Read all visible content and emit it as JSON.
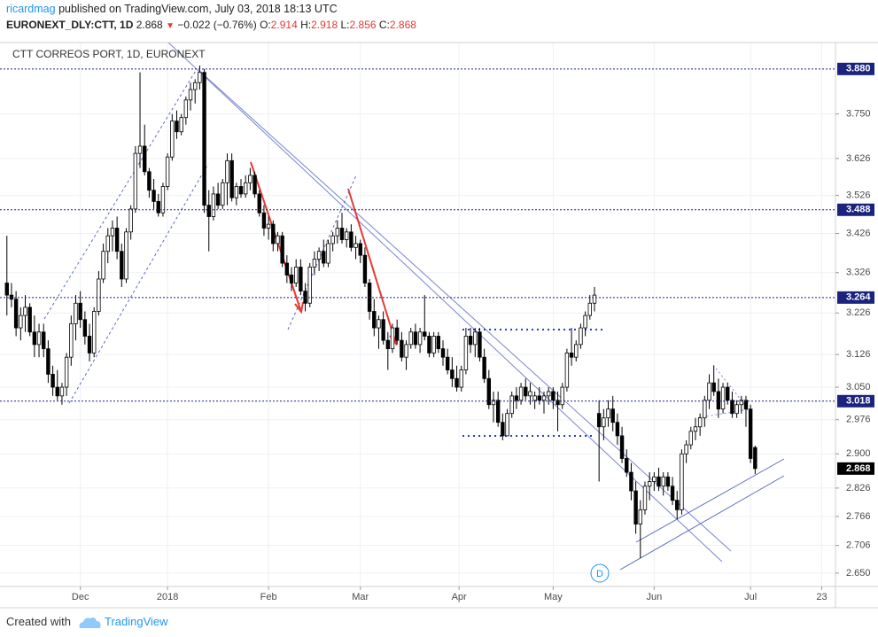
{
  "header": {
    "author": "ricardmag",
    "published": "published on TradingView.com, July 03, 2018 18:13 UTC",
    "symbol": "EURONEXT_DLY:CTT, 1D",
    "change": "−0.022 (−0.76%)",
    "open_label": "O:",
    "high_label": "H:",
    "low_label": "L:",
    "close_label": "C:"
  },
  "chart_data": {
    "type": "candlestick",
    "title": "CTT CORREOS PORT, 1D, EURONEXT",
    "candles": [
      [
        3.3,
        3.42,
        3.22,
        3.27
      ],
      [
        3.27,
        3.3,
        3.24,
        3.26
      ],
      [
        3.26,
        3.28,
        3.17,
        3.19
      ],
      [
        3.19,
        3.24,
        3.16,
        3.22
      ],
      [
        3.22,
        3.27,
        3.18,
        3.24
      ],
      [
        3.24,
        3.25,
        3.17,
        3.18
      ],
      [
        3.18,
        3.22,
        3.12,
        3.15
      ],
      [
        3.15,
        3.2,
        3.12,
        3.18
      ],
      [
        3.18,
        3.2,
        3.12,
        3.14
      ],
      [
        3.14,
        3.16,
        3.06,
        3.08
      ],
      [
        3.08,
        3.1,
        3.03,
        3.05
      ],
      [
        3.05,
        3.09,
        3.02,
        3.03
      ],
      [
        3.03,
        3.06,
        3.01,
        3.05
      ],
      [
        3.05,
        3.13,
        3.03,
        3.12
      ],
      [
        3.12,
        3.22,
        3.1,
        3.2
      ],
      [
        3.2,
        3.27,
        3.16,
        3.25
      ],
      [
        3.25,
        3.28,
        3.19,
        3.21
      ],
      [
        3.21,
        3.23,
        3.15,
        3.17
      ],
      [
        3.17,
        3.2,
        3.11,
        3.13
      ],
      [
        3.13,
        3.24,
        3.12,
        3.23
      ],
      [
        3.23,
        3.33,
        3.22,
        3.31
      ],
      [
        3.31,
        3.4,
        3.3,
        3.38
      ],
      [
        3.38,
        3.44,
        3.35,
        3.42
      ],
      [
        3.42,
        3.46,
        3.38,
        3.44
      ],
      [
        3.44,
        3.47,
        3.36,
        3.38
      ],
      [
        3.38,
        3.4,
        3.29,
        3.31
      ],
      [
        3.31,
        3.44,
        3.3,
        3.43
      ],
      [
        3.43,
        3.5,
        3.41,
        3.49
      ],
      [
        3.49,
        3.66,
        3.48,
        3.64
      ],
      [
        3.64,
        3.87,
        3.6,
        3.66
      ],
      [
        3.66,
        3.72,
        3.58,
        3.59
      ],
      [
        3.59,
        3.6,
        3.52,
        3.54
      ],
      [
        3.54,
        3.57,
        3.49,
        3.51
      ],
      [
        3.51,
        3.53,
        3.47,
        3.48
      ],
      [
        3.48,
        3.56,
        3.47,
        3.55
      ],
      [
        3.55,
        3.64,
        3.54,
        3.63
      ],
      [
        3.63,
        3.75,
        3.62,
        3.73
      ],
      [
        3.73,
        3.76,
        3.68,
        3.7
      ],
      [
        3.7,
        3.75,
        3.69,
        3.74
      ],
      [
        3.74,
        3.8,
        3.72,
        3.79
      ],
      [
        3.79,
        3.84,
        3.76,
        3.82
      ],
      [
        3.82,
        3.85,
        3.78,
        3.84
      ],
      [
        3.84,
        3.89,
        3.82,
        3.87
      ],
      [
        3.87,
        3.88,
        3.48,
        3.5
      ],
      [
        3.5,
        3.54,
        3.38,
        3.47
      ],
      [
        3.47,
        3.55,
        3.46,
        3.53
      ],
      [
        3.53,
        3.56,
        3.49,
        3.5
      ],
      [
        3.5,
        3.57,
        3.49,
        3.56
      ],
      [
        3.56,
        3.64,
        3.5,
        3.62
      ],
      [
        3.62,
        3.64,
        3.51,
        3.52
      ],
      [
        3.52,
        3.56,
        3.5,
        3.55
      ],
      [
        3.55,
        3.57,
        3.52,
        3.53
      ],
      [
        3.53,
        3.58,
        3.52,
        3.56
      ],
      [
        3.56,
        3.6,
        3.54,
        3.58
      ],
      [
        3.58,
        3.59,
        3.52,
        3.53
      ],
      [
        3.53,
        3.54,
        3.47,
        3.48
      ],
      [
        3.48,
        3.5,
        3.42,
        3.44
      ],
      [
        3.44,
        3.47,
        3.41,
        3.45
      ],
      [
        3.45,
        3.46,
        3.38,
        3.4
      ],
      [
        3.4,
        3.43,
        3.38,
        3.42
      ],
      [
        3.42,
        3.43,
        3.34,
        3.35
      ],
      [
        3.35,
        3.37,
        3.3,
        3.32
      ],
      [
        3.32,
        3.34,
        3.28,
        3.3
      ],
      [
        3.3,
        3.36,
        3.29,
        3.34
      ],
      [
        3.34,
        3.36,
        3.27,
        3.28
      ],
      [
        3.28,
        3.3,
        3.23,
        3.25
      ],
      [
        3.25,
        3.35,
        3.24,
        3.34
      ],
      [
        3.34,
        3.38,
        3.32,
        3.36
      ],
      [
        3.36,
        3.39,
        3.33,
        3.38
      ],
      [
        3.38,
        3.41,
        3.34,
        3.35
      ],
      [
        3.35,
        3.41,
        3.34,
        3.4
      ],
      [
        3.4,
        3.43,
        3.38,
        3.42
      ],
      [
        3.42,
        3.46,
        3.4,
        3.44
      ],
      [
        3.44,
        3.48,
        3.4,
        3.41
      ],
      [
        3.41,
        3.44,
        3.39,
        3.43
      ],
      [
        3.43,
        3.45,
        3.38,
        3.39
      ],
      [
        3.39,
        3.42,
        3.36,
        3.4
      ],
      [
        3.4,
        3.41,
        3.35,
        3.37
      ],
      [
        3.37,
        3.39,
        3.29,
        3.3
      ],
      [
        3.3,
        3.31,
        3.21,
        3.23
      ],
      [
        3.23,
        3.26,
        3.17,
        3.19
      ],
      [
        3.19,
        3.22,
        3.14,
        3.21
      ],
      [
        3.21,
        3.23,
        3.15,
        3.16
      ],
      [
        3.16,
        3.18,
        3.09,
        3.14
      ],
      [
        3.14,
        3.2,
        3.13,
        3.19
      ],
      [
        3.19,
        3.21,
        3.15,
        3.16
      ],
      [
        3.16,
        3.18,
        3.11,
        3.12
      ],
      [
        3.12,
        3.16,
        3.09,
        3.15
      ],
      [
        3.15,
        3.19,
        3.14,
        3.18
      ],
      [
        3.18,
        3.2,
        3.14,
        3.15
      ],
      [
        3.15,
        3.19,
        3.13,
        3.18
      ],
      [
        3.18,
        3.27,
        3.16,
        3.17
      ],
      [
        3.17,
        3.18,
        3.12,
        3.13
      ],
      [
        3.13,
        3.18,
        3.12,
        3.17
      ],
      [
        3.17,
        3.18,
        3.13,
        3.14
      ],
      [
        3.14,
        3.16,
        3.1,
        3.12
      ],
      [
        3.12,
        3.14,
        3.08,
        3.09
      ],
      [
        3.09,
        3.12,
        3.05,
        3.07
      ],
      [
        3.07,
        3.1,
        3.04,
        3.05
      ],
      [
        3.05,
        3.1,
        3.04,
        3.09
      ],
      [
        3.09,
        3.19,
        3.08,
        3.17
      ],
      [
        3.17,
        3.19,
        3.13,
        3.15
      ],
      [
        3.15,
        3.19,
        3.12,
        3.18
      ],
      [
        3.18,
        3.19,
        3.11,
        3.12
      ],
      [
        3.12,
        3.14,
        3.06,
        3.07
      ],
      [
        3.07,
        3.09,
        3.0,
        3.01
      ],
      [
        3.01,
        3.04,
        2.97,
        3.02
      ],
      [
        3.02,
        3.04,
        2.96,
        2.97
      ],
      [
        2.97,
        2.99,
        2.93,
        2.94
      ],
      [
        2.94,
        3.0,
        2.94,
        2.99
      ],
      [
        2.99,
        3.04,
        2.98,
        3.03
      ],
      [
        3.03,
        3.05,
        3.0,
        3.02
      ],
      [
        3.02,
        3.06,
        3.01,
        3.05
      ],
      [
        3.05,
        3.07,
        3.02,
        3.03
      ],
      [
        3.03,
        3.06,
        3.01,
        3.04
      ],
      [
        3.02,
        3.04,
        3.0,
        3.03
      ],
      [
        3.03,
        3.05,
        3.01,
        3.02
      ],
      [
        3.02,
        3.04,
        2.99,
        3.03
      ],
      [
        3.03,
        3.05,
        3.01,
        3.04
      ],
      [
        3.04,
        3.05,
        3.0,
        3.02
      ],
      [
        3.02,
        3.04,
        2.95,
        3.01
      ],
      [
        3.01,
        3.06,
        3.0,
        3.05
      ],
      [
        3.05,
        3.14,
        3.04,
        3.13
      ],
      [
        3.13,
        3.19,
        3.1,
        3.12
      ],
      [
        3.12,
        3.16,
        3.11,
        3.15
      ],
      [
        3.15,
        3.2,
        3.14,
        3.19
      ],
      [
        3.19,
        3.23,
        3.17,
        3.22
      ],
      [
        3.22,
        3.27,
        3.21,
        3.25
      ],
      [
        3.25,
        3.29,
        3.23,
        3.27
      ],
      [
        2.99,
        3.02,
        2.84,
        2.96
      ],
      [
        2.96,
        3.0,
        2.93,
        2.98
      ],
      [
        2.98,
        3.02,
        2.96,
        3.0
      ],
      [
        3.0,
        3.03,
        2.95,
        2.97
      ],
      [
        2.97,
        2.99,
        2.92,
        2.94
      ],
      [
        2.94,
        2.96,
        2.88,
        2.89
      ],
      [
        2.89,
        2.91,
        2.85,
        2.86
      ],
      [
        2.86,
        2.88,
        2.8,
        2.82
      ],
      [
        2.82,
        2.84,
        2.73,
        2.75
      ],
      [
        2.75,
        2.8,
        2.68,
        2.78
      ],
      [
        2.78,
        2.84,
        2.77,
        2.83
      ],
      [
        2.83,
        2.86,
        2.8,
        2.84
      ],
      [
        2.84,
        2.86,
        2.82,
        2.85
      ],
      [
        2.85,
        2.87,
        2.82,
        2.83
      ],
      [
        2.83,
        2.86,
        2.81,
        2.85
      ],
      [
        2.85,
        2.86,
        2.82,
        2.83
      ],
      [
        2.83,
        2.85,
        2.79,
        2.8
      ],
      [
        2.8,
        2.82,
        2.76,
        2.78
      ],
      [
        2.78,
        2.91,
        2.77,
        2.9
      ],
      [
        2.9,
        2.93,
        2.88,
        2.92
      ],
      [
        2.92,
        2.96,
        2.91,
        2.95
      ],
      [
        2.95,
        2.98,
        2.93,
        2.96
      ],
      [
        2.96,
        2.99,
        2.94,
        2.98
      ],
      [
        2.98,
        3.03,
        2.96,
        3.02
      ],
      [
        3.02,
        3.08,
        3.0,
        3.06
      ],
      [
        3.06,
        3.1,
        3.03,
        3.04
      ],
      [
        3.04,
        3.07,
        2.98,
        3.0
      ],
      [
        3.0,
        3.06,
        2.99,
        3.05
      ],
      [
        3.05,
        3.06,
        3.01,
        3.02
      ],
      [
        3.02,
        3.04,
        2.98,
        2.99
      ],
      [
        2.99,
        3.02,
        2.98,
        3.01
      ],
      [
        3.01,
        3.03,
        2.99,
        3.02
      ],
      [
        3.02,
        3.03,
        2.96,
        3.0
      ],
      [
        3.0,
        3.01,
        2.88,
        2.89
      ],
      [
        2.914,
        2.918,
        2.856,
        2.868
      ]
    ],
    "xlim": [
      -1.5,
      180.5
    ],
    "xticks": [
      {
        "value": 16,
        "label": "Dec"
      },
      {
        "value": 35,
        "label": "2018"
      },
      {
        "value": 57,
        "label": "Feb"
      },
      {
        "value": 77,
        "label": "Mar"
      },
      {
        "value": 98.5,
        "label": "Apr"
      },
      {
        "value": 119,
        "label": "May"
      },
      {
        "value": 141,
        "label": "Jun"
      },
      {
        "value": 162,
        "label": "Jul"
      },
      {
        "value": 177.5,
        "label": "23"
      }
    ],
    "ylim": [
      2.618,
      3.953
    ],
    "log_scale": true,
    "grid": true,
    "yticks": [
      {
        "value": 3.75,
        "label": "3.750"
      },
      {
        "value": 3.626,
        "label": "3.626"
      },
      {
        "value": 3.526,
        "label": "3.526"
      },
      {
        "value": 3.426,
        "label": "3.426"
      },
      {
        "value": 3.326,
        "label": "3.326"
      },
      {
        "value": 3.226,
        "label": "3.226"
      },
      {
        "value": 3.126,
        "label": "3.126"
      },
      {
        "value": 3.05,
        "label": "3.050"
      },
      {
        "value": 2.976,
        "label": "2.976"
      },
      {
        "value": 2.9,
        "label": "2.900"
      },
      {
        "value": 2.826,
        "label": "2.826"
      },
      {
        "value": 2.766,
        "label": "2.766"
      },
      {
        "value": 2.706,
        "label": "2.706"
      },
      {
        "value": 2.65,
        "label": "2.650"
      }
    ],
    "levels": [
      {
        "value": 3.88,
        "label": "3.880"
      },
      {
        "value": 3.488,
        "label": "3.488"
      },
      {
        "value": 3.264,
        "label": "3.264"
      },
      {
        "value": 3.018,
        "label": "3.018"
      }
    ],
    "level_color": "#1a237e",
    "up_color": "#ffffff",
    "down_color": "#000000"
  },
  "footer": {
    "created": "Created with",
    "brand": "TradingView"
  }
}
